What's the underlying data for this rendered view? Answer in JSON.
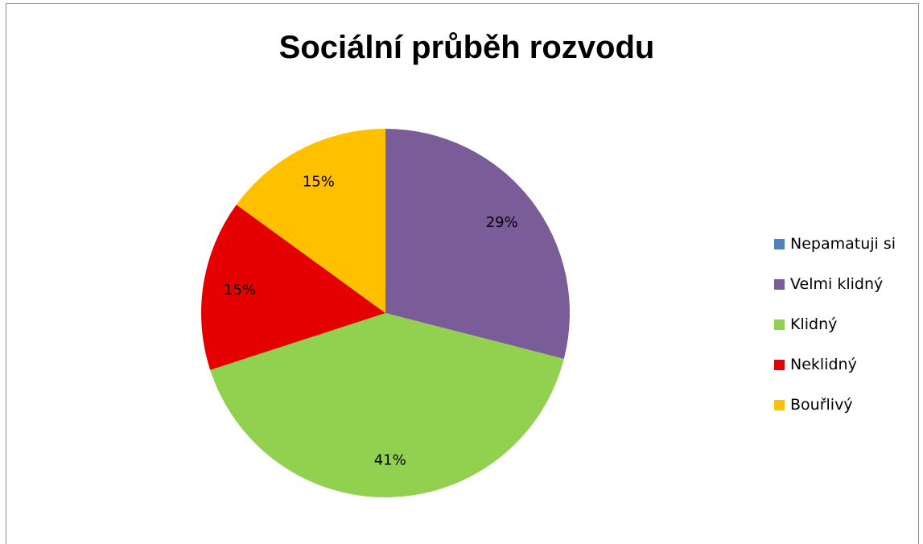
{
  "chart_data": {
    "type": "pie",
    "title": "Sociální průběh rozvodu",
    "categories": [
      "Nepamatuji si",
      "Velmi klidný",
      "Klidný",
      "Neklidný",
      "Bouřlivý"
    ],
    "values": [
      0,
      29,
      41,
      15,
      15
    ],
    "labels": [
      "",
      "29%",
      "41%",
      "15%",
      "15%"
    ],
    "colors": [
      "#4f81bd",
      "#7a5c99",
      "#92d050",
      "#e50000",
      "#ffc000"
    ],
    "legend_position": "right"
  }
}
